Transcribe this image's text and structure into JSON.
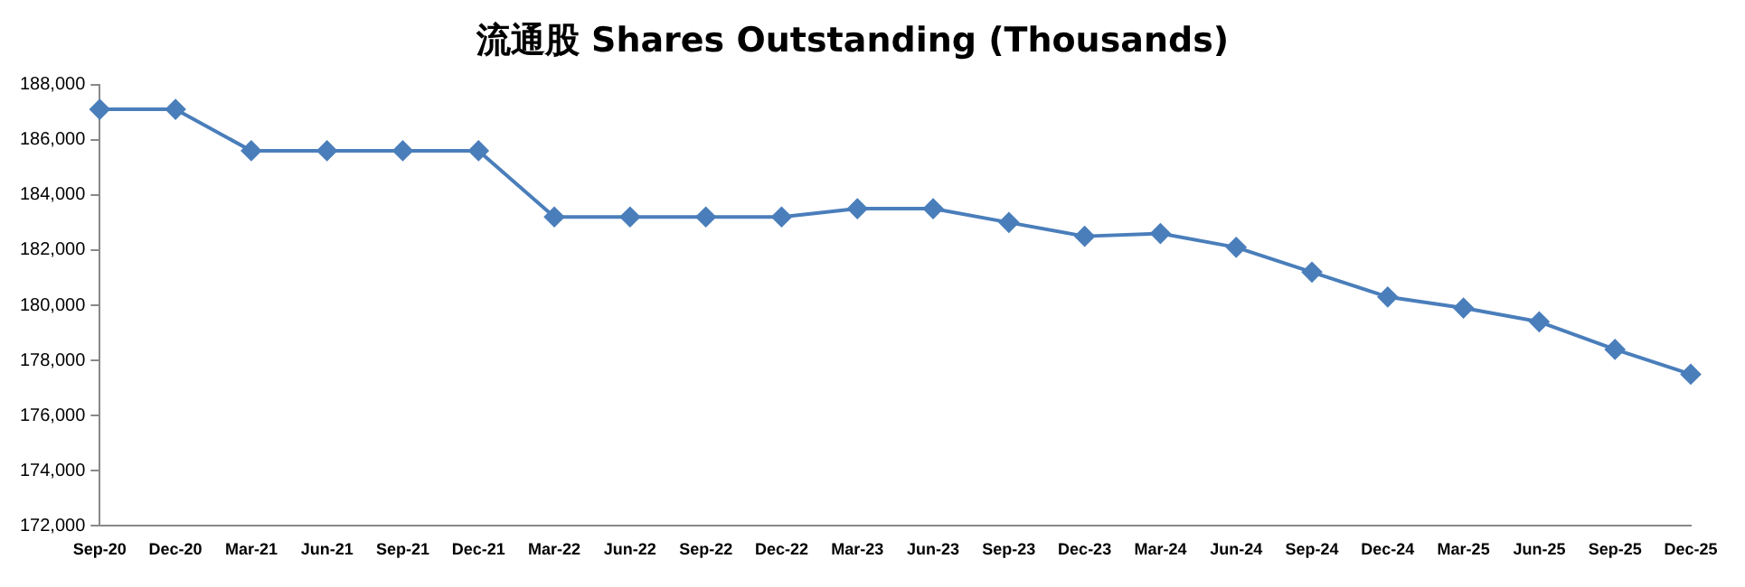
{
  "chart_data": {
    "type": "line",
    "title": "流通股 Shares Outstanding (Thousands)",
    "categories": [
      "Sep-20",
      "Dec-20",
      "Mar-21",
      "Jun-21",
      "Sep-21",
      "Dec-21",
      "Mar-22",
      "Jun-22",
      "Sep-22",
      "Dec-22",
      "Mar-23",
      "Jun-23",
      "Sep-23",
      "Dec-23",
      "Mar-24",
      "Jun-24",
      "Sep-24",
      "Dec-24",
      "Mar-25",
      "Jun-25",
      "Sep-25",
      "Dec-25"
    ],
    "series": [
      {
        "color": "#4a7ebb",
        "values": [
          187100,
          187100,
          185600,
          185600,
          185600,
          185600,
          183200,
          183200,
          183200,
          183200,
          183500,
          183500,
          183000,
          182500,
          182600,
          182100,
          181200,
          180300,
          179900,
          179400,
          178400,
          177500
        ]
      }
    ],
    "ylim": [
      172000,
      188000
    ],
    "yticks": [
      {
        "value": 172000,
        "label": "172,000"
      },
      {
        "value": 174000,
        "label": "174,000"
      },
      {
        "value": 176000,
        "label": "176,000"
      },
      {
        "value": 178000,
        "label": "178,000"
      },
      {
        "value": 180000,
        "label": "180,000"
      },
      {
        "value": 182000,
        "label": "182,000"
      },
      {
        "value": 184000,
        "label": "184,000"
      },
      {
        "value": 186000,
        "label": "186,000"
      },
      {
        "value": 188000,
        "label": "188,000"
      }
    ],
    "grid": false,
    "legend": false,
    "marker": "diamond",
    "line_style": "solid"
  }
}
